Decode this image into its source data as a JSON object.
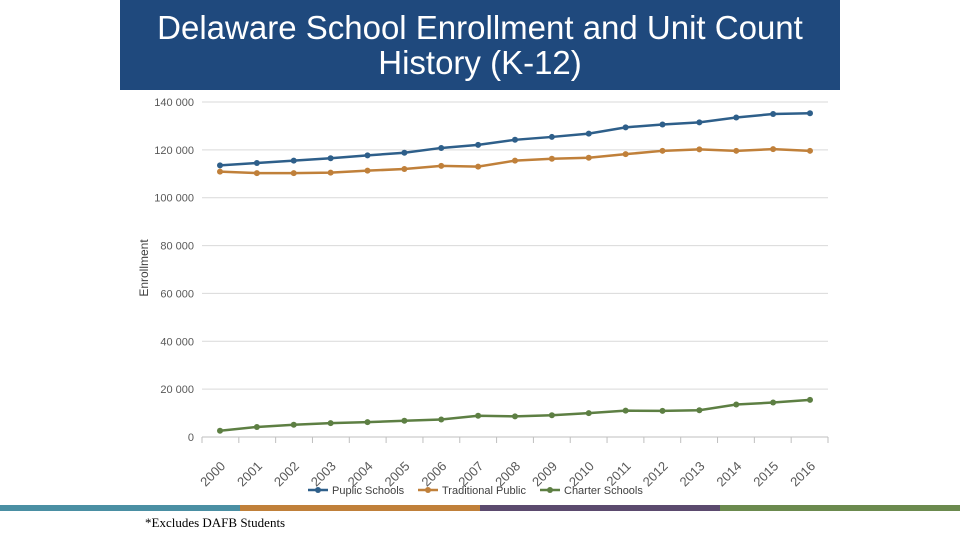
{
  "slide": {
    "title": "Delaware School Enrollment and Unit Count History (K-12)",
    "footnote": "*Excludes DAFB Students",
    "bottom_bar_colors": [
      "#4a8fa3",
      "#c0803a",
      "#5b4a6e",
      "#6b8a4e"
    ],
    "title_bar_color": "#1f497d"
  },
  "chart_data": {
    "type": "line",
    "title": "",
    "xlabel": "",
    "ylabel": "Enrollment",
    "categories": [
      "2000",
      "2001",
      "2002",
      "2003",
      "2004",
      "2005",
      "2006",
      "2007",
      "2008",
      "2009",
      "2010",
      "2011",
      "2012",
      "2013",
      "2014",
      "2015",
      "2016"
    ],
    "ylim": [
      0,
      140000
    ],
    "yticks": [
      0,
      20000,
      40000,
      60000,
      80000,
      100000,
      120000,
      140000
    ],
    "ytick_labels": [
      "0",
      "20 000",
      "40 000",
      "60 000",
      "80 000",
      "100 000",
      "120 000",
      "140 000"
    ],
    "grid": true,
    "legend_position": "bottom",
    "series": [
      {
        "name": "Puplic Schools",
        "color": "#2e5f8a",
        "values": [
          113500,
          114500,
          115500,
          116500,
          117700,
          118800,
          120800,
          122100,
          124200,
          125400,
          126800,
          129400,
          130600,
          131500,
          133500,
          135000,
          135300
        ]
      },
      {
        "name": "Traditional Public",
        "color": "#c0803a",
        "values": [
          110900,
          110300,
          110300,
          110500,
          111300,
          112000,
          113300,
          113000,
          115500,
          116300,
          116700,
          118200,
          119600,
          120200,
          119600,
          120300,
          119600
        ]
      },
      {
        "name": "Charter Schools",
        "color": "#5d7f43",
        "values": [
          2600,
          4200,
          5100,
          5800,
          6200,
          6800,
          7300,
          8900,
          8600,
          9100,
          10000,
          11000,
          10900,
          11200,
          13600,
          14400,
          15500
        ]
      }
    ]
  }
}
